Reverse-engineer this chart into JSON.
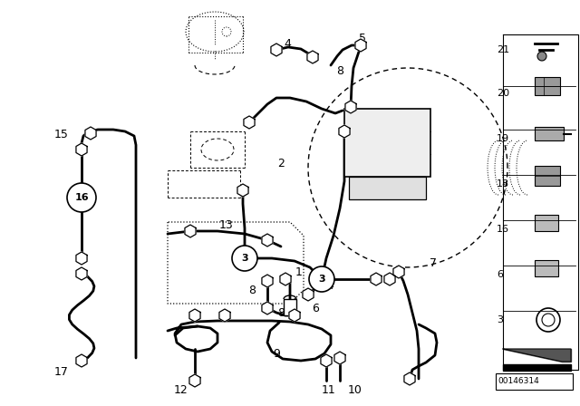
{
  "bg_color": "#ffffff",
  "diagram_id": "00146314",
  "line_color": "#000000"
}
